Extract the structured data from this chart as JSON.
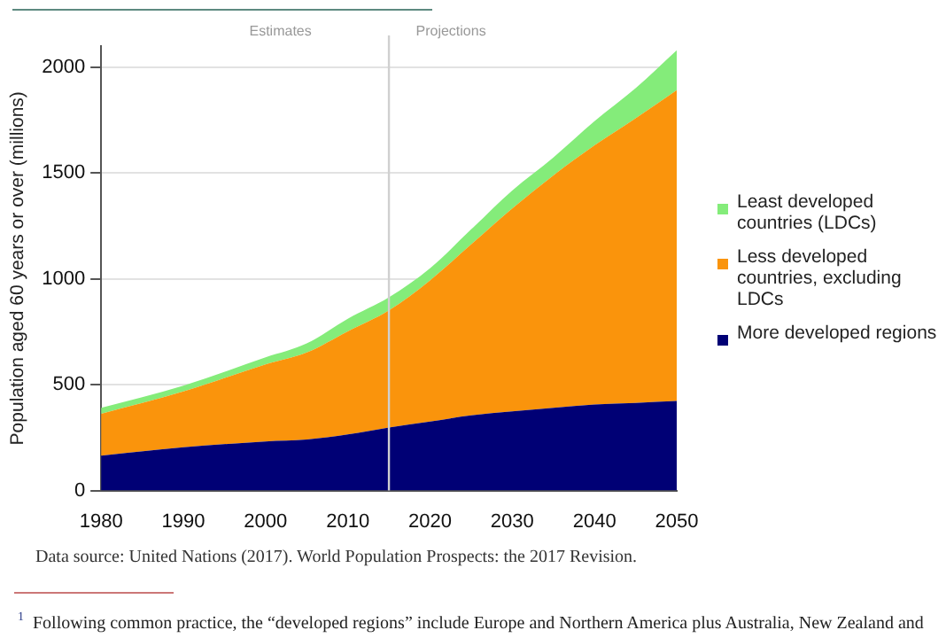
{
  "chart_data": {
    "type": "area",
    "stacked": true,
    "ylabel": "Population aged 60 years or over (millions)",
    "x": [
      1980,
      1990,
      2000,
      2005,
      2010,
      2015,
      2020,
      2025,
      2030,
      2035,
      2040,
      2045,
      2050
    ],
    "series": [
      {
        "name": "More developed regions",
        "color": "#000075",
        "values": [
          165,
          204,
          232,
          241,
          265,
          298,
          326,
          355,
          374,
          391,
          406,
          414,
          423
        ]
      },
      {
        "name": "Less developed countries, excluding LDCs",
        "color": "#fa940c",
        "values": [
          198,
          264,
          364,
          411,
          487,
          553,
          667,
          808,
          959,
          1098,
          1225,
          1345,
          1469
        ]
      },
      {
        "name": "Least developed countries (LDCs)",
        "color": "#84ec7a",
        "values": [
          28,
          28,
          33,
          43,
          60,
          62,
          57,
          71,
          85,
          85,
          114,
          142,
          188
        ]
      }
    ],
    "xlim": [
      1980,
      2050
    ],
    "xticks": [
      1980,
      1990,
      2000,
      2010,
      2020,
      2030,
      2040,
      2050
    ],
    "ylim": [
      0,
      2100
    ],
    "yticks": [
      0,
      500,
      1000,
      1500,
      2000
    ],
    "grid": "y",
    "legend": "right",
    "ref_lines": [
      {
        "axis": "x",
        "value": 2015,
        "color": "#d0d0d0"
      }
    ],
    "annotations": [
      "Estimates",
      "Projections",
      "Data source: United Nations (2017). World Population Prospects: the 2017 Revision.",
      "$^{1}$Following common practice, the “developed regions” include Europe and Northern America plus Australia, New Zealand and"
    ]
  }
}
